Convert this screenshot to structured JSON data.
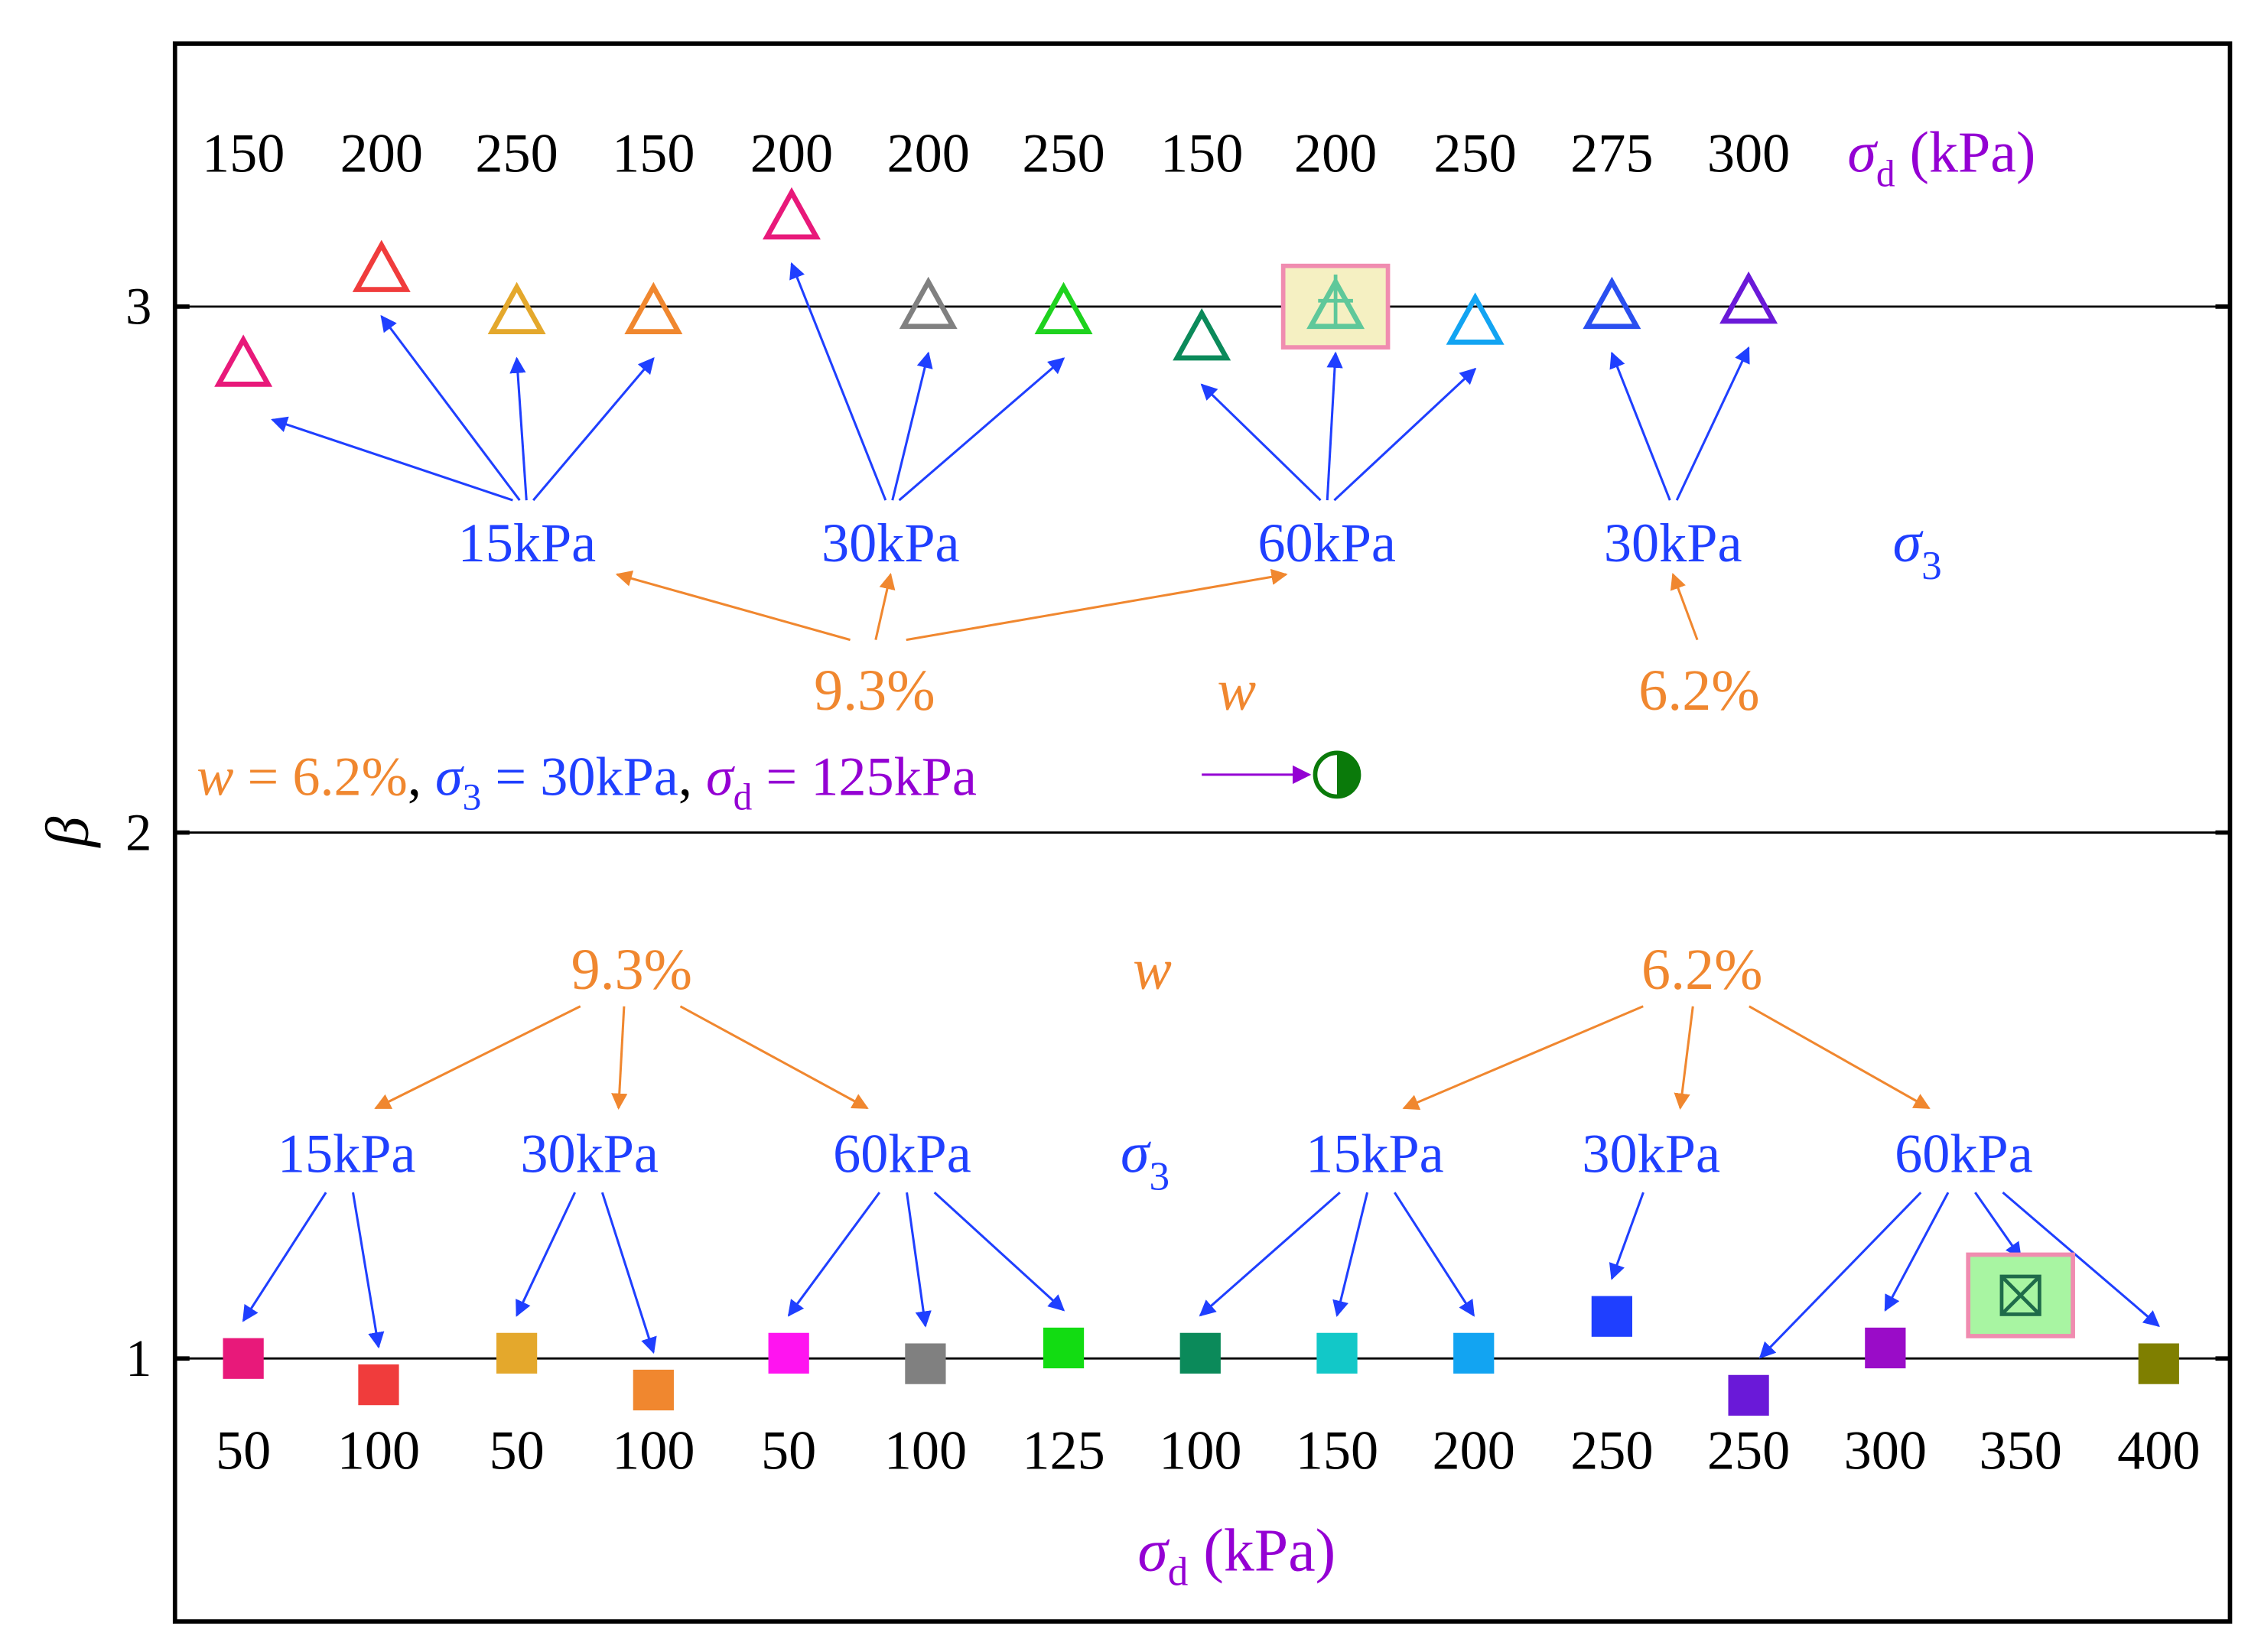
{
  "chart_data": {
    "type": "scatter",
    "ylabel": "β",
    "xlabel_main": "σ",
    "xlabel_sub": "d",
    "xlabel_unit": " (kPa)",
    "ylim": [
      0.5,
      3.5
    ],
    "yticks": [
      1,
      2,
      3
    ],
    "grid_y": [
      1,
      2,
      3
    ],
    "colors": {
      "orange": "#F0872F",
      "blue": "#1F3FFF",
      "purple": "#9400D3",
      "black": "#000000"
    },
    "triangles": {
      "marker": "open-triangle",
      "points": [
        {
          "sigma_d": "150",
          "beta": 2.89,
          "color": "#E8197A"
        },
        {
          "sigma_d": "200",
          "beta": 3.07,
          "color": "#F03C3C"
        },
        {
          "sigma_d": "250",
          "beta": 2.99,
          "color": "#E4A82C"
        },
        {
          "sigma_d": "150",
          "beta": 2.99,
          "color": "#F0872F"
        },
        {
          "sigma_d": "200",
          "beta": 3.17,
          "color": "#E8197A"
        },
        {
          "sigma_d": "200",
          "beta": 3.0,
          "color": "#808080"
        },
        {
          "sigma_d": "250",
          "beta": 2.99,
          "color": "#1ED21E"
        },
        {
          "sigma_d": "150",
          "beta": 2.94,
          "color": "#0B8A5A"
        },
        {
          "sigma_d": "200",
          "beta": 3.0,
          "color": "#5FC89A",
          "highlight": true
        },
        {
          "sigma_d": "250",
          "beta": 2.97,
          "color": "#12A4F2"
        },
        {
          "sigma_d": "275",
          "beta": 3.0,
          "color": "#2A4FF0"
        },
        {
          "sigma_d": "300",
          "beta": 3.01,
          "color": "#6A19D8"
        }
      ],
      "sigma_d_header": "σd (kPa)",
      "sigma3_groups": [
        {
          "label": "15kPa",
          "targets": [
            0,
            1,
            2,
            3
          ]
        },
        {
          "label": "30kPa",
          "targets": [
            4,
            5,
            6
          ]
        },
        {
          "label": "60kPa",
          "targets": [
            7,
            8,
            9
          ]
        },
        {
          "label": "30kPa",
          "targets": [
            10,
            11
          ]
        }
      ],
      "w_groups": [
        {
          "label": "9.3%",
          "targets": [
            0,
            1,
            2
          ]
        },
        {
          "label": "6.2%",
          "targets": [
            3
          ]
        }
      ],
      "sigma3_label": "σ3",
      "w_label": "w"
    },
    "squares": {
      "marker": "filled-square",
      "points": [
        {
          "sigma_d": "50",
          "beta": 1.0,
          "color": "#E8197A"
        },
        {
          "sigma_d": "100",
          "beta": 0.95,
          "color": "#F03C3C"
        },
        {
          "sigma_d": "50",
          "beta": 1.01,
          "color": "#E4A82C"
        },
        {
          "sigma_d": "100",
          "beta": 0.94,
          "color": "#F0872F"
        },
        {
          "sigma_d": "50",
          "beta": 1.01,
          "color": "#FF14F0"
        },
        {
          "sigma_d": "100",
          "beta": 0.99,
          "color": "#808080"
        },
        {
          "sigma_d": "125",
          "beta": 1.02,
          "color": "#12DC12"
        },
        {
          "sigma_d": "100",
          "beta": 1.01,
          "color": "#0B8A5A"
        },
        {
          "sigma_d": "150",
          "beta": 1.01,
          "color": "#12C8C8"
        },
        {
          "sigma_d": "200",
          "beta": 1.01,
          "color": "#12A4F2"
        },
        {
          "sigma_d": "250",
          "beta": 1.08,
          "color": "#1F3FFF"
        },
        {
          "sigma_d": "250",
          "beta": 0.93,
          "color": "#6A19D8"
        },
        {
          "sigma_d": "300",
          "beta": 1.02,
          "color": "#9A0CC8"
        },
        {
          "sigma_d": "350",
          "beta": 1.12,
          "color": "#1F6B4A",
          "highlight": true
        },
        {
          "sigma_d": "400",
          "beta": 0.99,
          "color": "#7F7F00"
        }
      ],
      "sigma3_groups": [
        {
          "label": "15kPa",
          "targets": [
            0,
            1
          ]
        },
        {
          "label": "30kPa",
          "targets": [
            2,
            3
          ]
        },
        {
          "label": "60kPa",
          "targets": [
            4,
            5,
            6
          ]
        },
        {
          "label": "15kPa",
          "targets": [
            7,
            8,
            9
          ]
        },
        {
          "label": "30kPa",
          "targets": [
            10
          ]
        },
        {
          "label": "60kPa",
          "targets": [
            11,
            12,
            13,
            14
          ]
        }
      ],
      "w_groups": [
        {
          "label": "9.3%",
          "targets": [
            0,
            1,
            2
          ]
        },
        {
          "label": "6.2%",
          "targets": [
            3,
            4,
            5
          ]
        }
      ],
      "sigma3_label": "σ3",
      "w_label": "w"
    },
    "special_point": {
      "beta": 2.11,
      "color": "#0A7A0A",
      "label_parts": [
        {
          "text": "w",
          "italic": true,
          "color": "#F0872F"
        },
        {
          "text": " = 6.2%",
          "color": "#F0872F"
        },
        {
          "text": ", ",
          "color": "#000000"
        },
        {
          "text": "σ",
          "italic": true,
          "color": "#1F3FFF"
        },
        {
          "text": "3",
          "sub": true,
          "color": "#1F3FFF"
        },
        {
          "text": " = 30kPa",
          "color": "#1F3FFF"
        },
        {
          "text": ", ",
          "color": "#000000"
        },
        {
          "text": "σ",
          "italic": true,
          "color": "#9400D3"
        },
        {
          "text": "d",
          "sub": true,
          "color": "#9400D3"
        },
        {
          "text": " = 125kPa",
          "color": "#9400D3"
        }
      ]
    }
  }
}
